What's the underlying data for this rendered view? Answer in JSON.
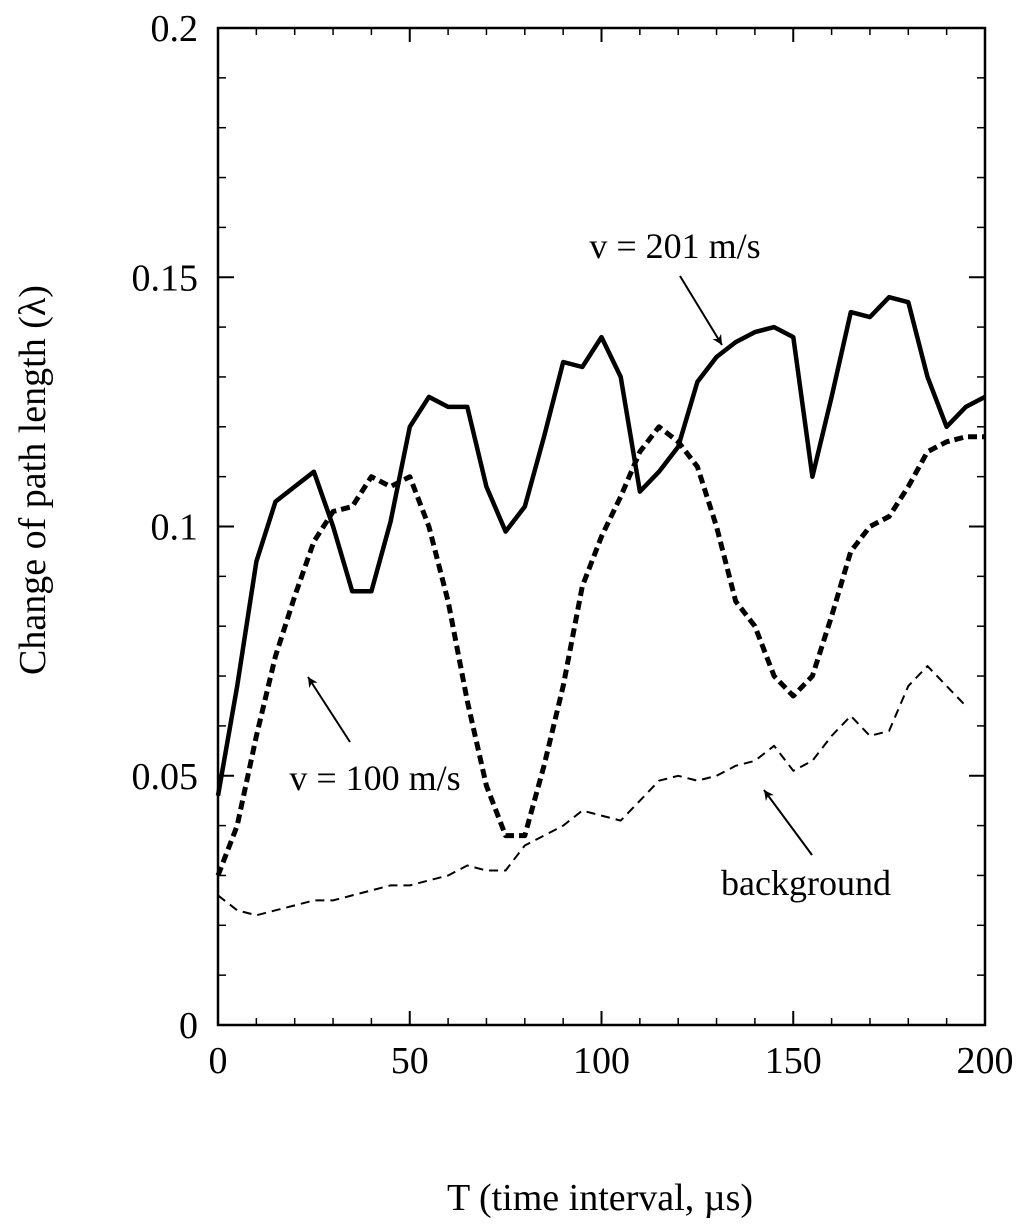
{
  "chart_data": {
    "type": "line",
    "xlabel": "T (time interval, µs)",
    "ylabel": "Change of path length (λ)",
    "xlim": [
      0,
      200
    ],
    "ylim": [
      0,
      0.2
    ],
    "x_ticks": [
      "0",
      "50",
      "100",
      "150",
      "200"
    ],
    "y_ticks": [
      "0",
      "0.05",
      "0.1",
      "0.15",
      "0.2"
    ],
    "grid": false,
    "series": [
      {
        "name": "v = 201 m/s",
        "style": "solid",
        "x": [
          0,
          5,
          10,
          15,
          20,
          25,
          30,
          35,
          40,
          45,
          50,
          55,
          60,
          65,
          70,
          75,
          80,
          85,
          90,
          95,
          100,
          105,
          110,
          115,
          120,
          125,
          130,
          135,
          140,
          145,
          150,
          155,
          160,
          165,
          170,
          175,
          180,
          185,
          190,
          195,
          200
        ],
        "y": [
          0.046,
          0.068,
          0.093,
          0.105,
          0.108,
          0.111,
          0.1,
          0.087,
          0.087,
          0.101,
          0.12,
          0.126,
          0.124,
          0.124,
          0.108,
          0.099,
          0.104,
          0.118,
          0.133,
          0.132,
          0.138,
          0.13,
          0.107,
          0.111,
          0.116,
          0.129,
          0.134,
          0.137,
          0.139,
          0.14,
          0.138,
          0.11,
          0.126,
          0.143,
          0.142,
          0.146,
          0.145,
          0.13,
          0.12,
          0.124,
          0.126
        ]
      },
      {
        "name": "v = 100 m/s",
        "style": "dashed-heavy",
        "x": [
          0,
          5,
          10,
          15,
          20,
          25,
          30,
          35,
          40,
          45,
          50,
          55,
          60,
          65,
          70,
          75,
          80,
          85,
          90,
          95,
          100,
          105,
          110,
          115,
          120,
          125,
          130,
          135,
          140,
          145,
          150,
          155,
          160,
          165,
          170,
          175,
          180,
          185,
          190,
          195,
          200
        ],
        "y": [
          0.03,
          0.04,
          0.058,
          0.074,
          0.086,
          0.097,
          0.103,
          0.104,
          0.11,
          0.108,
          0.11,
          0.1,
          0.085,
          0.065,
          0.048,
          0.038,
          0.038,
          0.052,
          0.068,
          0.088,
          0.098,
          0.106,
          0.115,
          0.12,
          0.117,
          0.112,
          0.1,
          0.085,
          0.08,
          0.07,
          0.066,
          0.07,
          0.082,
          0.095,
          0.1,
          0.102,
          0.108,
          0.115,
          0.117,
          0.118,
          0.118
        ]
      },
      {
        "name": "background",
        "style": "dashed-thin",
        "x": [
          0,
          5,
          10,
          15,
          20,
          25,
          30,
          35,
          40,
          45,
          50,
          55,
          60,
          65,
          70,
          75,
          80,
          85,
          90,
          95,
          100,
          105,
          110,
          115,
          120,
          125,
          130,
          135,
          140,
          145,
          150,
          155,
          160,
          165,
          170,
          175,
          180,
          185,
          190,
          195
        ],
        "y": [
          0.026,
          0.023,
          0.022,
          0.023,
          0.024,
          0.025,
          0.025,
          0.026,
          0.027,
          0.028,
          0.028,
          0.029,
          0.03,
          0.032,
          0.031,
          0.031,
          0.036,
          0.038,
          0.04,
          0.043,
          0.042,
          0.041,
          0.045,
          0.049,
          0.05,
          0.049,
          0.05,
          0.052,
          0.053,
          0.056,
          0.051,
          0.053,
          0.058,
          0.062,
          0.058,
          0.059,
          0.068,
          0.072,
          0.068,
          0.064
        ]
      }
    ],
    "annotations": [
      {
        "text": "v = 201 m/s",
        "target_series": "v = 201 m/s"
      },
      {
        "text": "v = 100 m/s",
        "target_series": "v = 100 m/s"
      },
      {
        "text": "background",
        "target_series": "background"
      }
    ]
  }
}
